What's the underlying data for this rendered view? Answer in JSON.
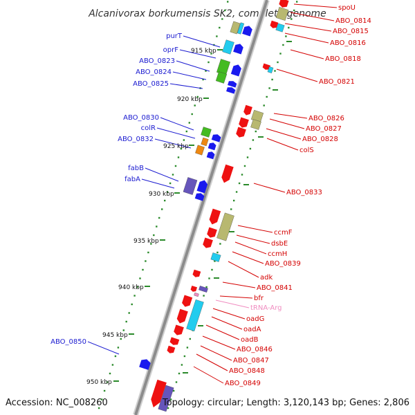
{
  "title": "Alcanivorax borkumensis SK2, complete genome",
  "footer": {
    "accession": "Accession: NC_008260",
    "topology": "Topology: circular; Length: 3,120,143 bp; Genes: 2,806"
  },
  "colors": {
    "backbone": "#8c8c8c",
    "tick": "#2a8a2a",
    "forward_label": "#1a1ad0",
    "reverse_label": "#d40000",
    "rna_label": "#f08cc0",
    "red_gene": "#ee1111",
    "blue_gene": "#1a1aee",
    "cyan_gene": "#22ccee",
    "olive_gene": "#b8b870",
    "green_gene": "#44bb22",
    "orange_gene": "#ee8811",
    "purple_gene": "#6655bb"
  },
  "kbp_labels": [
    "915 kbp",
    "920 kbp",
    "925 kbp",
    "930 kbp",
    "935 kbp",
    "940 kbp",
    "945 kbp",
    "950 kbp"
  ],
  "left_genes": [
    "purT",
    "oprF",
    "ABO_0823",
    "ABO_0824",
    "ABO_0825",
    "ABO_0830",
    "colR",
    "ABO_0832",
    "fabB",
    "fabA",
    "ABO_0850"
  ],
  "right_genes": [
    "spoU",
    "ABO_0814",
    "ABO_0815",
    "ABO_0816",
    "ABO_0818",
    "ABO_0821",
    "ABO_0826",
    "ABO_0827",
    "ABO_0828",
    "colS",
    "ABO_0833",
    "ccmF",
    "dsbE",
    "ccmH",
    "ABO_0839",
    "adk",
    "ABO_0841",
    "bfr",
    "tRNA-Arg",
    "oadG",
    "oadA",
    "oadB",
    "ABO_0846",
    "ABO_0847",
    "ABO_0848",
    "ABO_0849"
  ]
}
